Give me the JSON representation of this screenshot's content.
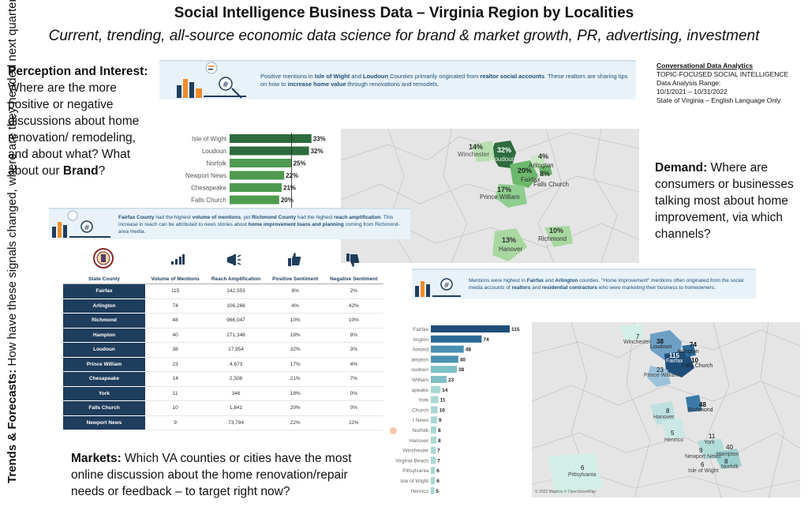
{
  "header": {
    "title": "Social Intelligence Business Data – Virginia Region by Localities",
    "subtitle": "Current, trending, all-source economic data science for brand & market growth, PR, advertising, investment"
  },
  "perception": {
    "heading": "Perception and Interest:",
    "body": " Where are the more positive or negative discussions about home renovation/ remodeling, and about what? What about our ",
    "brand": "Brand",
    "end": "?"
  },
  "demand": {
    "heading": "Demand:",
    "body": " Where are consumers or businesses talking most about home improvement, via which channels?"
  },
  "trends": {
    "heading": "Trends & Forecasts:",
    "body": " How have these signals changed, where are they headed next quarter?"
  },
  "markets": {
    "heading": "Markets:",
    "body": " Which VA counties or cities have the most online discussion about the home renovation/repair needs or feedback – to target right now?"
  },
  "meta": {
    "heading": "Conversational Data Analytics",
    "line1": "TOPIC-FOCUSED SOCIAL INTELLIGENCE",
    "line2": "Data Analysis Range:",
    "line3": "10/1/2021 – 10/31/2022",
    "line4": "State of Virginia – English Language Only"
  },
  "banner1": {
    "p1": "Positive mentions in ",
    "b1": "Isle of Wight",
    "p2": " and ",
    "b2": "Loudoun",
    "p3": " Counties primarily originated from ",
    "b3": "realtor social accounts",
    "p4": ". These realtors are sharing tips on how to ",
    "b4": "increase home value",
    "p5": " through renovations and remodels."
  },
  "banner2": {
    "b1": "Fairfax County",
    "p1": " had the highest ",
    "b2": "volume of mentions",
    "p2": ", yet ",
    "b3": "Richmond County",
    "p3": " had the highest ",
    "b4": "reach amplification",
    "p4": ". This increase in reach can be attributed to news stories about ",
    "b5": "home improvement loans and planning",
    "p5": " coming from Richmond-area media."
  },
  "banner3": {
    "p1": "Mentions were highest in ",
    "b1": "Fairfax",
    "p2": " and ",
    "b2": "Arlington",
    "p3": " counties. \"Home improvement\" mentions often originated from the social media accounts of ",
    "b3": "realtors",
    "p4": " and ",
    "b4": "residential contractors",
    "p5": " who were marketing their business to homeowners."
  },
  "sentiment_chart": {
    "type": "bar",
    "categories": [
      "Isle of Wight",
      "Loudoun",
      "Norfolk",
      "Newport News",
      "Chesapeake",
      "Falls Church"
    ],
    "labels": [
      "33%",
      "32%",
      "25%",
      "22%",
      "21%",
      "20%"
    ],
    "values": [
      33,
      32,
      25,
      22,
      21,
      20
    ],
    "colors": [
      "#2e6b3e",
      "#2e6b3e",
      "#4f9a4f",
      "#4f9a4f",
      "#4f9a4f",
      "#4f9a4f"
    ]
  },
  "table": {
    "headers": [
      "State County",
      "Volume of Mentions",
      "Reach Amplification",
      "Positive Sentiment",
      "Negative Sentiment"
    ],
    "rows": [
      [
        "Fairfax",
        "115",
        "142,553",
        "8%",
        "2%"
      ],
      [
        "Arlington",
        "74",
        "106,266",
        "4%",
        "42%"
      ],
      [
        "Richmond",
        "48",
        "966,047",
        "10%",
        "10%"
      ],
      [
        "Hampton",
        "40",
        "271,348",
        "18%",
        "8%"
      ],
      [
        "Loudoun",
        "38",
        "17,954",
        "32%",
        "3%"
      ],
      [
        "Prince William",
        "23",
        "4,673",
        "17%",
        "4%"
      ],
      [
        "Chesapeake",
        "14",
        "2,508",
        "21%",
        "7%"
      ],
      [
        "York",
        "11",
        "346",
        "18%",
        "0%"
      ],
      [
        "Falls Church",
        "10",
        "1,841",
        "20%",
        "0%"
      ],
      [
        "Newport News",
        "9",
        "73,794",
        "22%",
        "11%"
      ]
    ]
  },
  "mentions_chart": {
    "type": "bar",
    "categories": [
      "Fairfax",
      "lington",
      "hmond",
      "ampton",
      "oudoun",
      "William",
      "apeake",
      "York",
      "Church",
      "t News",
      "Norfolk",
      "Hanover",
      "Winchester",
      "Virginia Beach",
      "Pittsylvania",
      "Isle of Wight",
      "Henrico"
    ],
    "values": [
      115,
      74,
      48,
      40,
      38,
      23,
      14,
      11,
      10,
      9,
      8,
      8,
      7,
      7,
      6,
      6,
      5
    ]
  },
  "map1": {
    "labels": [
      {
        "name": "Winchester",
        "value": "14%"
      },
      {
        "name": "Loudoun",
        "value": "32%"
      },
      {
        "name": "Arlington",
        "value": "4%"
      },
      {
        "name": "Falls Church",
        "value": "20%"
      },
      {
        "name": "Fairfax",
        "value": "8%"
      },
      {
        "name": "Prince William",
        "value": "17%"
      },
      {
        "name": "Hanover",
        "value": "13%"
      },
      {
        "name": "Richmond",
        "value": "10%"
      }
    ]
  },
  "map2": {
    "labels": [
      {
        "name": "Winchester",
        "value": "7"
      },
      {
        "name": "Loudoun",
        "value": "38"
      },
      {
        "name": "Arlington",
        "value": "74"
      },
      {
        "name": "Fairfax",
        "value": "115"
      },
      {
        "name": "Falls Church",
        "value": "10"
      },
      {
        "name": "Prince William",
        "value": "23"
      },
      {
        "name": "Richmond",
        "value": "48"
      },
      {
        "name": "Hanover",
        "value": "8"
      },
      {
        "name": "Henrico",
        "value": "5"
      },
      {
        "name": "York",
        "value": "11"
      },
      {
        "name": "Newport News",
        "value": "9"
      },
      {
        "name": "Hampton",
        "value": "40"
      },
      {
        "name": "Isle of Wight",
        "value": "6"
      },
      {
        "name": "Norfolk",
        "value": "8"
      },
      {
        "name": "Pittsylvania",
        "value": "6"
      }
    ],
    "attribution": "© 2022 Mapbox © OpenStreetMap"
  }
}
